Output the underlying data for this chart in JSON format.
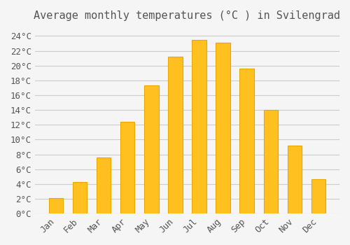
{
  "title": "Average monthly temperatures (°C ) in Svilengrad",
  "months": [
    "Jan",
    "Feb",
    "Mar",
    "Apr",
    "May",
    "Jun",
    "Jul",
    "Aug",
    "Sep",
    "Oct",
    "Nov",
    "Dec"
  ],
  "values": [
    2.1,
    4.3,
    7.6,
    12.4,
    17.3,
    21.2,
    23.5,
    23.1,
    19.6,
    14.0,
    9.2,
    4.6
  ],
  "bar_color": "#FFC020",
  "bar_edge_color": "#E8A800",
  "background_color": "#F5F5F5",
  "grid_color": "#CCCCCC",
  "text_color": "#555555",
  "ylim": [
    0,
    25
  ],
  "yticks": [
    0,
    2,
    4,
    6,
    8,
    10,
    12,
    14,
    16,
    18,
    20,
    22,
    24
  ],
  "title_fontsize": 11,
  "tick_fontsize": 9,
  "font_family": "monospace"
}
